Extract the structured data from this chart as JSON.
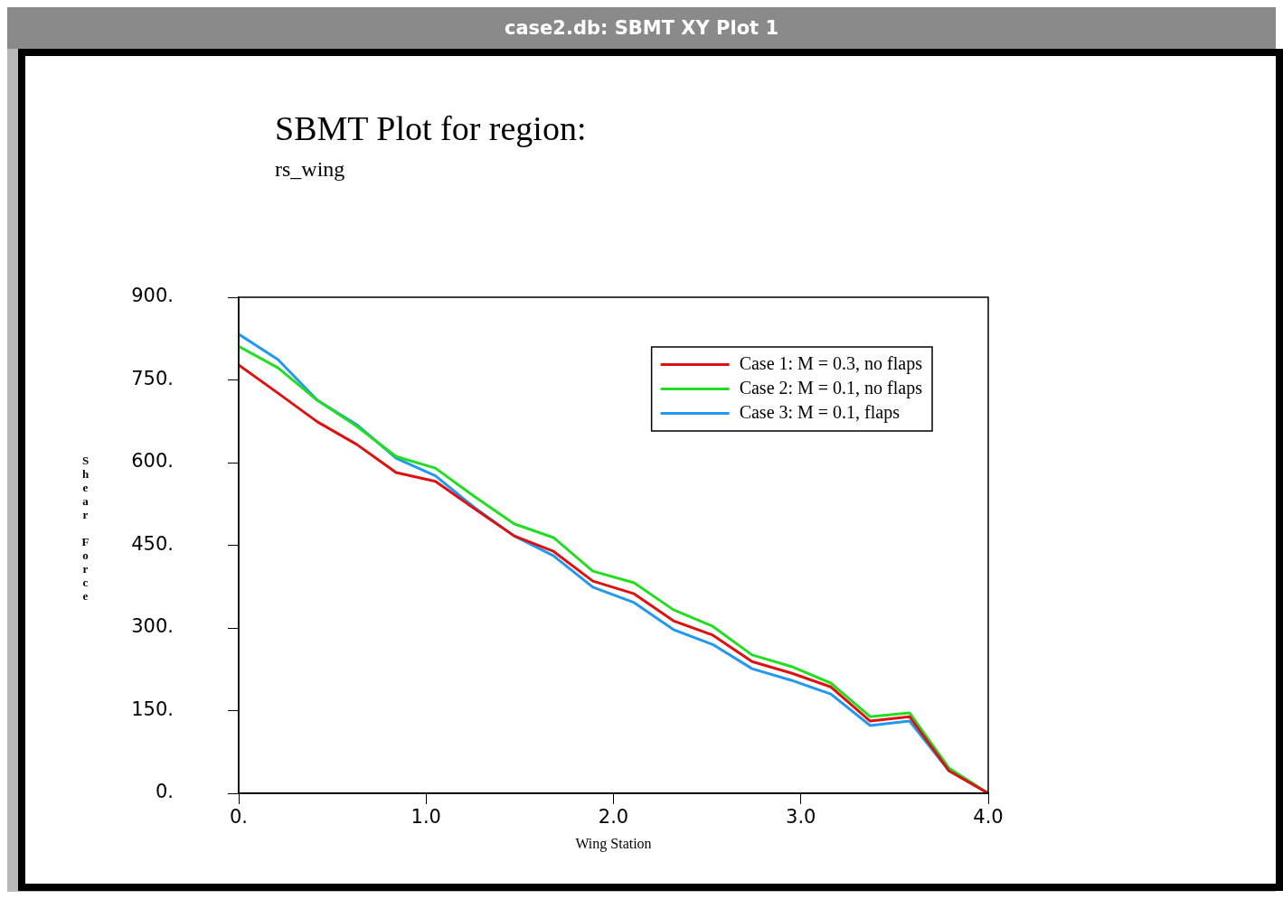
{
  "chart_data": {
    "type": "line",
    "title": "SBMT Plot for region:",
    "subtitle": "rs_wing",
    "xlabel": "Wing Station",
    "ylabel": "Shear Force",
    "annotations": [
      "case2.db:  SBMT XY Plot 1"
    ],
    "x": [
      0,
      0.21,
      0.42,
      0.63,
      0.84,
      1.05,
      1.26,
      1.47,
      1.68,
      1.89,
      2.11,
      2.32,
      2.53,
      2.74,
      2.95,
      3.16,
      3.37,
      3.58,
      3.79,
      4.0
    ],
    "series": [
      {
        "name": "Case 1: M = 0.3, no flaps",
        "color": "#dd1111",
        "values": [
          777,
          726,
          674,
          633,
          582,
          566,
          516,
          467,
          439,
          385,
          362,
          313,
          287,
          239,
          218,
          193,
          131,
          139,
          41,
          0
        ]
      },
      {
        "name": "Case 2: M = 0.1, no flaps",
        "color": "#22dd22",
        "values": [
          811,
          772,
          713,
          666,
          611,
          590,
          538,
          489,
          464,
          403,
          382,
          333,
          303,
          251,
          230,
          200,
          139,
          146,
          46,
          0
        ]
      },
      {
        "name": "Case 3: M = 0.1, flaps",
        "color": "#2299ee",
        "values": [
          833,
          787,
          713,
          669,
          608,
          576,
          518,
          467,
          431,
          374,
          346,
          297,
          270,
          226,
          205,
          180,
          123,
          131,
          41,
          0
        ]
      }
    ],
    "xlim": [
      0,
      4
    ],
    "xticks": [
      {
        "value": 0,
        "label": "0."
      },
      {
        "value": 1,
        "label": "1.0"
      },
      {
        "value": 2,
        "label": "2.0"
      },
      {
        "value": 3,
        "label": "3.0"
      },
      {
        "value": 4,
        "label": "4.0"
      }
    ],
    "ylim": [
      0,
      900
    ],
    "yticks": [
      {
        "value": 0,
        "label": "0."
      },
      {
        "value": 150,
        "label": "150."
      },
      {
        "value": 300,
        "label": "300."
      },
      {
        "value": 450,
        "label": "450."
      },
      {
        "value": 600,
        "label": "600."
      },
      {
        "value": 750,
        "label": "750."
      },
      {
        "value": 900,
        "label": "900."
      }
    ],
    "grid": false,
    "legend": "top right",
    "marker": "none",
    "line_style": "solid"
  }
}
